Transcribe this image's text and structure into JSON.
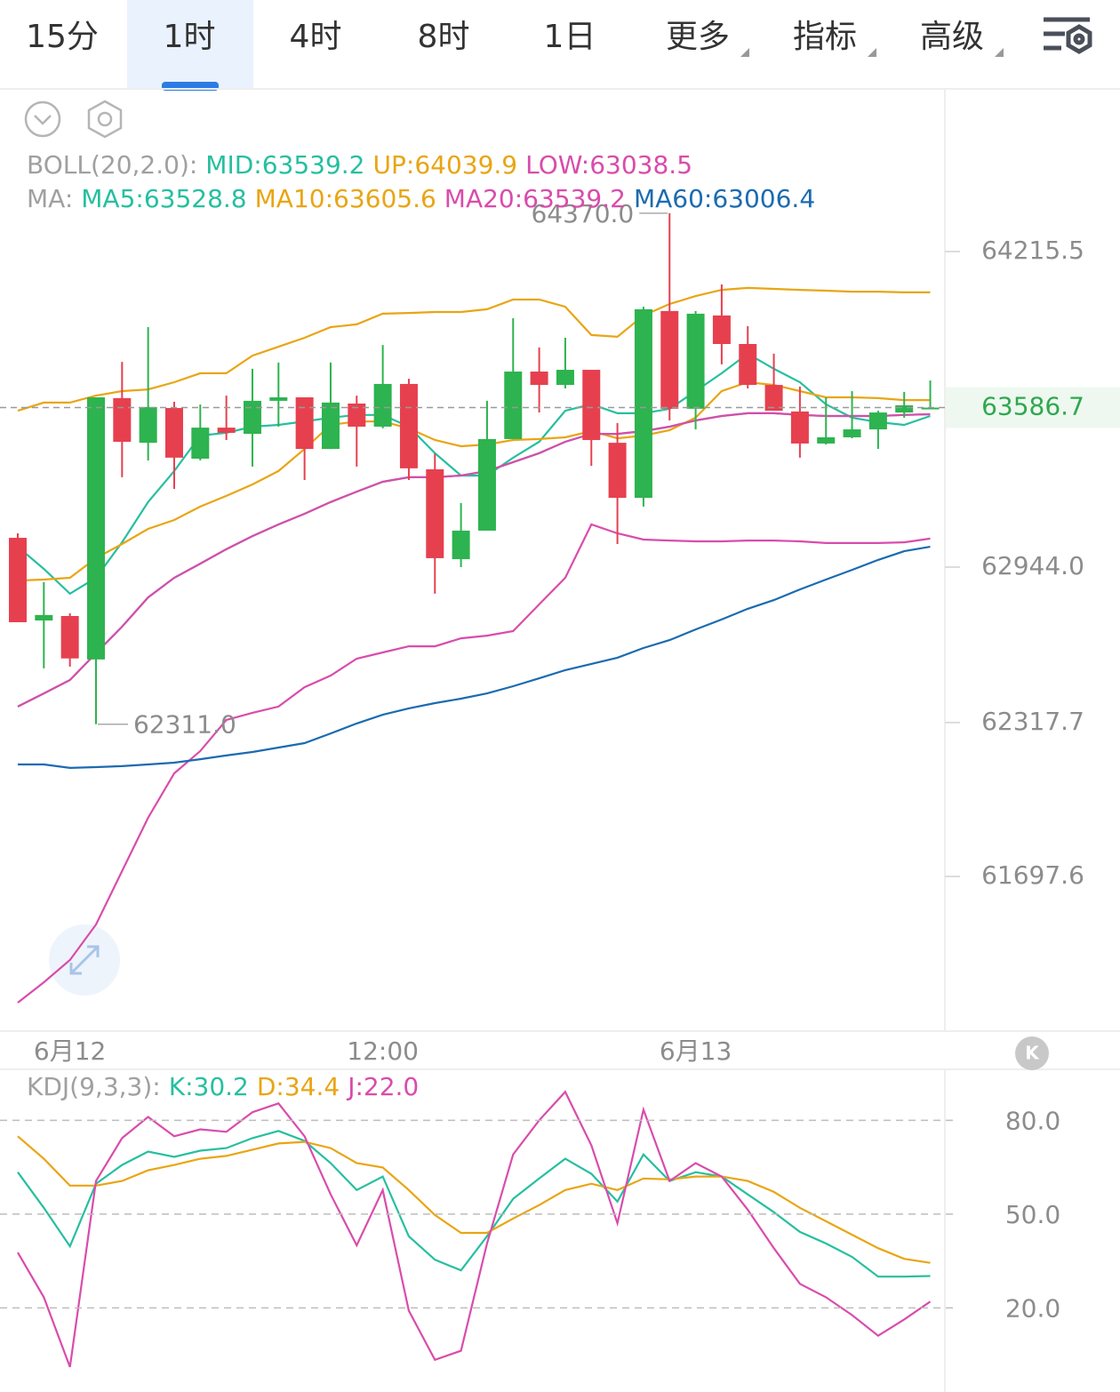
{
  "toolbar": {
    "tabs": [
      "15分",
      "1时",
      "4时",
      "8时",
      "1日"
    ],
    "menus": [
      "更多",
      "指标",
      "高级"
    ],
    "active": 1
  },
  "kline_badge": "K",
  "chart_data": [
    {
      "type": "candlestick",
      "categories": [
        null,
        null,
        "6月12",
        null,
        null,
        null,
        null,
        null,
        null,
        null,
        null,
        null,
        null,
        null,
        "12:00",
        null,
        null,
        null,
        null,
        null,
        null,
        null,
        null,
        null,
        null,
        null,
        "6月13",
        null,
        null,
        null,
        null,
        null,
        null,
        null,
        null,
        null
      ],
      "open": [
        63062,
        62729,
        62747,
        62572,
        63625,
        63445,
        63585,
        63381,
        63506,
        63481,
        63614,
        63628,
        63420,
        63603,
        63510,
        63682,
        63338,
        62976,
        63091,
        63460,
        63732,
        63678,
        63739,
        63445,
        63223,
        63976,
        63582,
        63958,
        63843,
        63678,
        63571,
        63442,
        63467,
        63499,
        63567,
        63583
      ],
      "high": [
        63080,
        62883,
        62758,
        63628,
        63771,
        63911,
        63610,
        63599,
        63635,
        63743,
        63768,
        63628,
        63768,
        63635,
        63839,
        63703,
        63402,
        63202,
        63614,
        63947,
        63829,
        63868,
        63739,
        63524,
        63993,
        64370.0,
        63976,
        64083,
        63915,
        63804,
        63671,
        63628,
        63653,
        63574,
        63650,
        63696
      ],
      "low": [
        62722,
        62536,
        62543,
        62311.0,
        63306,
        63374,
        63259,
        63374,
        63456,
        63349,
        63510,
        63295,
        63420,
        63349,
        63503,
        63295,
        62837,
        62944,
        63091,
        63460,
        63567,
        63664,
        63352,
        63037,
        63188,
        63535,
        63499,
        63761,
        63664,
        63574,
        63385,
        63438,
        63463,
        63420,
        63546,
        63582
      ],
      "close": [
        62722,
        62751,
        62576,
        63628,
        63449,
        63589,
        63385,
        63506,
        63485,
        63614,
        63628,
        63420,
        63607,
        63510,
        63682,
        63342,
        62980,
        63091,
        63460,
        63732,
        63678,
        63739,
        63456,
        63223,
        63983,
        63582,
        63965,
        63843,
        63678,
        63574,
        63442,
        63467,
        63499,
        63567,
        63596,
        63586.7
      ],
      "up_color": "#2db34f",
      "down_color": "#e6404f",
      "ylim": [
        61074.4,
        64870.9
      ],
      "yticks": [
        61697.6,
        62317.7,
        {
          "value": 62944.0,
          "label": "62944.0"
        },
        64215.5
      ],
      "last_price": 63586.7,
      "last_price_color": "#2fa84f",
      "high_label": "64370.0",
      "low_label": "62311.0",
      "indicators": [
        {
          "title": "BOLL(20,2.0):",
          "series": [
            {
              "name": "MID:63539.2",
              "color": "#26bfa0",
              "values": [
                62382,
                62435,
                62489,
                62597,
                62704,
                62822,
                62901,
                62958,
                63016,
                63069,
                63116,
                63159,
                63206,
                63248,
                63288,
                63306,
                63306,
                63313,
                63331,
                63367,
                63403,
                63449,
                63481,
                63481,
                63492,
                63510,
                63535,
                63553,
                63564,
                63564,
                63557,
                63553,
                63553,
                63553,
                63557,
                63560
              ]
            },
            {
              "name": "UP:64039.9",
              "color": "#e9a514",
              "values": [
                63574,
                63607,
                63607,
                63635,
                63653,
                63660,
                63689,
                63725,
                63725,
                63796,
                63832,
                63868,
                63911,
                63922,
                63965,
                63968,
                63972,
                63972,
                63983,
                64022,
                64022,
                63993,
                63879,
                63872,
                63958,
                64004,
                64036,
                64061,
                64069,
                64065,
                64061,
                64058,
                64054,
                64054,
                64051,
                64051
              ]
            },
            {
              "name": "LOW:63038.5",
              "color": "#d94cab",
              "values": [
                61189,
                61271,
                61361,
                61504,
                61719,
                61934,
                62113,
                62203,
                62328,
                62357,
                62382,
                62460,
                62507,
                62575,
                62600,
                62625,
                62625,
                62657,
                62668,
                62686,
                62794,
                62901,
                63116,
                63080,
                63055,
                63051,
                63048,
                63048,
                63051,
                63051,
                63048,
                63041,
                63041,
                63041,
                63044,
                63059
              ]
            }
          ]
        },
        {
          "title": "MA:",
          "series": [
            {
              "name": "MA5:63528.8",
              "color": "#26bfa0",
              "values": [
                63026,
                62937,
                62837,
                62901,
                63044,
                63206,
                63331,
                63474,
                63485,
                63510,
                63517,
                63531,
                63546,
                63557,
                63557,
                63510,
                63403,
                63313,
                63313,
                63385,
                63449,
                63574,
                63600,
                63564,
                63564,
                63582,
                63653,
                63725,
                63804,
                63743,
                63689,
                63600,
                63546,
                63528,
                63517,
                63553
              ]
            },
            {
              "name": "MA10:63605.6",
              "color": "#e9a514",
              "values": [
                62890,
                62894,
                62901,
                62980,
                63037,
                63098,
                63134,
                63188,
                63231,
                63277,
                63331,
                63420,
                63517,
                63531,
                63531,
                63503,
                63456,
                63431,
                63438,
                63456,
                63460,
                63467,
                63492,
                63463,
                63474,
                63496,
                63546,
                63653,
                63689,
                63678,
                63653,
                63628,
                63628,
                63625,
                63617,
                63617
              ]
            },
            {
              "name": "MA20:63539.2",
              "color": "#d94cab",
              "values": [
                62382,
                62435,
                62489,
                62597,
                62704,
                62822,
                62901,
                62958,
                63016,
                63069,
                63116,
                63159,
                63206,
                63248,
                63288,
                63306,
                63306,
                63313,
                63331,
                63367,
                63403,
                63449,
                63481,
                63481,
                63492,
                63510,
                63535,
                63553,
                63564,
                63564,
                63557,
                63553,
                63553,
                63553,
                63557,
                63560
              ]
            },
            {
              "name": "MA60:63006.4",
              "color": "#1b6bb0",
              "values": [
                62149,
                62149,
                62135,
                62138,
                62142,
                62149,
                62156,
                62170,
                62185,
                62199,
                62217,
                62235,
                62274,
                62314,
                62349,
                62375,
                62396,
                62414,
                62435,
                62464,
                62496,
                62529,
                62554,
                62579,
                62618,
                62650,
                62693,
                62733,
                62776,
                62811,
                62854,
                62894,
                62933,
                62973,
                63008,
                63026
              ]
            }
          ]
        }
      ]
    },
    {
      "type": "line",
      "ylim": [
        -6.9,
        96.3
      ],
      "yticks": [
        {
          "value": 20,
          "label": "20.0"
        },
        {
          "value": 50,
          "label": "50.0"
        },
        {
          "value": 80,
          "label": "80.0"
        }
      ],
      "grid": true,
      "indicators": [
        {
          "title": "KDJ(9,3,3):",
          "series": [
            {
              "name": "K:30.2",
              "color": "#26bfa0",
              "values": [
                63.4,
                52.0,
                39.7,
                59.7,
                65.7,
                70.0,
                68.3,
                70.3,
                71.1,
                74.3,
                76.6,
                73.4,
                66.3,
                57.7,
                62.0,
                42.9,
                35.4,
                32.0,
                42.9,
                54.9,
                61.4,
                67.7,
                62.9,
                54.0,
                69.1,
                60.6,
                63.4,
                62.0,
                56.3,
                50.6,
                44.3,
                40.6,
                36.3,
                30.0,
                30.0,
                30.2
              ]
            },
            {
              "name": "D:34.4",
              "color": "#e9a514",
              "values": [
                74.9,
                67.7,
                59.1,
                59.1,
                60.6,
                64.0,
                65.7,
                67.7,
                68.6,
                70.6,
                72.6,
                73.1,
                71.1,
                66.3,
                64.9,
                57.7,
                49.7,
                44.0,
                44.0,
                48.6,
                52.9,
                57.7,
                59.7,
                57.7,
                61.4,
                61.1,
                62.0,
                62.0,
                60.6,
                57.1,
                52.0,
                47.7,
                43.4,
                39.1,
                35.7,
                34.4
              ]
            },
            {
              "name": "J:22.0",
              "color": "#d94cab",
              "values": [
                37.7,
                23.4,
                1.1,
                60.6,
                74.3,
                81.1,
                74.9,
                77.1,
                76.3,
                82.6,
                85.4,
                74.9,
                56.3,
                40.0,
                57.7,
                19.1,
                3.4,
                6.3,
                40.6,
                69.1,
                80.0,
                89.1,
                72.0,
                47.1,
                83.4,
                60.6,
                66.3,
                62.0,
                51.4,
                39.1,
                27.7,
                23.4,
                17.7,
                11.1,
                16.3,
                22.0
              ]
            }
          ]
        }
      ]
    }
  ]
}
